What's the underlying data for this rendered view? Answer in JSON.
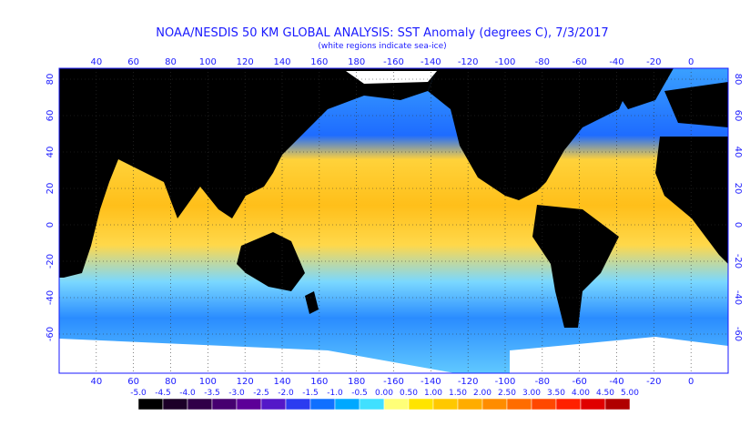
{
  "title": "NOAA/NESDIS 50 KM GLOBAL ANALYSIS: SST Anomaly (degrees C), 7/3/2017",
  "subtitle": "(white regions indicate sea-ice)",
  "lon_labels": [
    "40",
    "60",
    "80",
    "100",
    "120",
    "140",
    "160",
    "180",
    "-160",
    "-140",
    "-120",
    "-100",
    "-80",
    "-60",
    "-40",
    "-20",
    "0"
  ],
  "lat_labels": [
    "80",
    "60",
    "40",
    "20",
    "0",
    "-20",
    "-40",
    "-60"
  ],
  "colorbar": {
    "labels": [
      "-5.0",
      "-4.5",
      "-4.0",
      "-3.5",
      "-3.0",
      "-2.5",
      "-2.0",
      "-1.5",
      "-1.0",
      "-0.5",
      "0.00",
      "0.50",
      "1.00",
      "1.50",
      "2.00",
      "2.50",
      "3.00",
      "3.50",
      "4.00",
      "4.50",
      "5.00"
    ],
    "colors": [
      "#000000",
      "#1c0028",
      "#300048",
      "#460070",
      "#5c0098",
      "#5418c8",
      "#2c3cf0",
      "#1070ff",
      "#00a8ff",
      "#40e0ff",
      "#ffff78",
      "#ffe400",
      "#ffc800",
      "#ffac00",
      "#ff8c00",
      "#ff6c00",
      "#ff4800",
      "#ff2000",
      "#e00000",
      "#b00000"
    ]
  }
}
